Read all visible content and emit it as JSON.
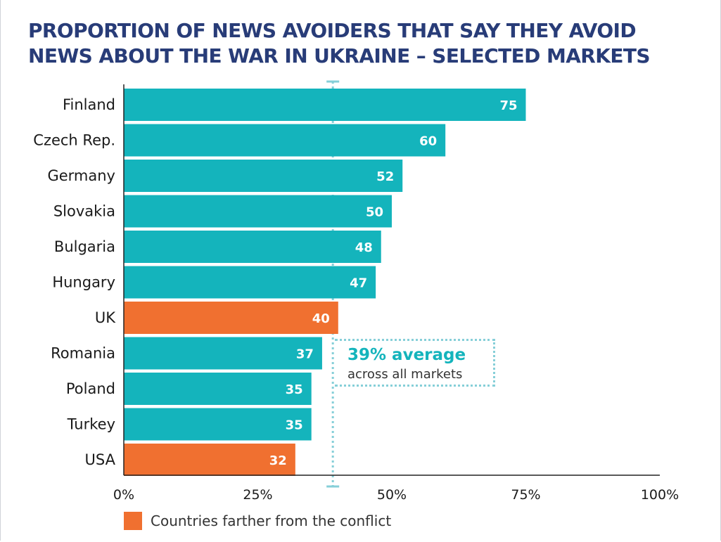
{
  "chart_data": {
    "type": "bar",
    "orientation": "horizontal",
    "title_lines": [
      "PROPORTION OF NEWS AVOIDERS THAT SAY THEY AVOID",
      "NEWS ABOUT THE WAR IN UKRAINE – SELECTED MARKETS"
    ],
    "categories": [
      "Finland",
      "Czech Rep.",
      "Germany",
      "Slovakia",
      "Bulgaria",
      "Hungary",
      "UK",
      "Romania",
      "Poland",
      "Turkey",
      "USA"
    ],
    "values": [
      75,
      60,
      52,
      50,
      48,
      47,
      40,
      37,
      35,
      35,
      32
    ],
    "highlighted": [
      "UK",
      "USA"
    ],
    "xlim": [
      0,
      100
    ],
    "xticks": [
      0,
      25,
      50,
      75,
      100
    ],
    "xtick_labels": [
      "0%",
      "25%",
      "50%",
      "75%",
      "100%"
    ],
    "grid": false,
    "average": {
      "value": 39,
      "value_label": "39% average",
      "description": "across all markets"
    },
    "legend": {
      "position": "bottom-left",
      "label": "Countries farther from the conflict"
    },
    "colors": {
      "default": "#14b4bc",
      "highlight": "#f07030",
      "title": "#283c78",
      "average_line": "#86cfd8"
    }
  }
}
